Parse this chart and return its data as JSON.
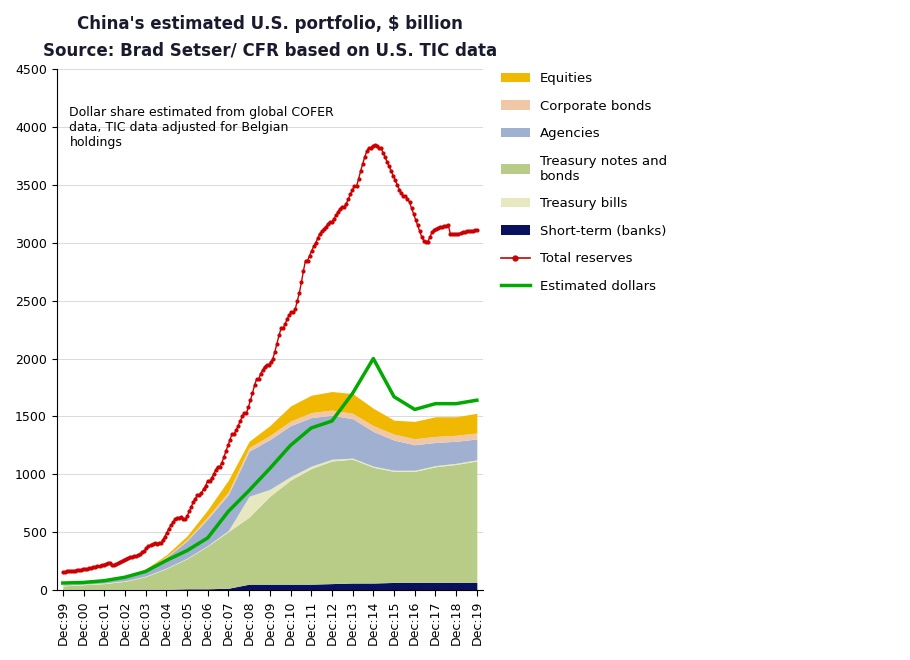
{
  "title": "China's estimated U.S. portfolio, $ billion",
  "subtitle": "Source: Brad Setser/ CFR based on U.S. TIC data",
  "annotation": "Dollar share estimated from global COFER\ndata, TIC data adjusted for Belgian\nholdings",
  "x_labels": [
    "Dec:99",
    "Dec:00",
    "Dec:01",
    "Dec:02",
    "Dec:03",
    "Dec:04",
    "Dec:05",
    "Dec:06",
    "Dec:07",
    "Dec:08",
    "Dec:09",
    "Dec:10",
    "Dec:11",
    "Dec:12",
    "Dec:13",
    "Dec:14",
    "Dec:15",
    "Dec:16",
    "Dec:17",
    "Dec:18",
    "Dec:19"
  ],
  "years": [
    1999,
    2000,
    2001,
    2002,
    2003,
    2004,
    2005,
    2006,
    2007,
    2008,
    2009,
    2010,
    2011,
    2012,
    2013,
    2014,
    2015,
    2016,
    2017,
    2018,
    2019
  ],
  "short_term_banks": [
    5,
    5,
    5,
    5,
    5,
    5,
    10,
    10,
    15,
    50,
    50,
    50,
    50,
    55,
    60,
    60,
    65,
    65,
    65,
    65,
    65
  ],
  "treasury_notes_bonds": [
    30,
    40,
    50,
    70,
    110,
    180,
    260,
    370,
    490,
    580,
    760,
    900,
    1000,
    1060,
    1070,
    1000,
    960,
    960,
    1000,
    1020,
    1050
  ],
  "treasury_bills": [
    5,
    5,
    5,
    5,
    5,
    5,
    5,
    5,
    10,
    180,
    60,
    30,
    20,
    15,
    10,
    10,
    10,
    10,
    10,
    10,
    10
  ],
  "agencies": [
    5,
    10,
    15,
    25,
    50,
    90,
    150,
    230,
    310,
    390,
    430,
    440,
    420,
    380,
    340,
    300,
    260,
    220,
    200,
    190,
    180
  ],
  "corporate_bonds": [
    3,
    3,
    3,
    3,
    5,
    8,
    12,
    18,
    25,
    30,
    35,
    40,
    43,
    45,
    47,
    50,
    52,
    52,
    52,
    52,
    52
  ],
  "equities": [
    3,
    3,
    3,
    3,
    7,
    15,
    30,
    60,
    100,
    55,
    85,
    130,
    150,
    160,
    170,
    150,
    120,
    150,
    170,
    160,
    170
  ],
  "total_reserves": [
    155,
    168,
    212,
    291,
    403,
    609,
    819,
    1066,
    1528,
    1946,
    2399,
    2847,
    3181,
    3312,
    3821,
    3843,
    3406,
    3011,
    3140,
    3073,
    3108
  ],
  "estimated_dollars": [
    60,
    65,
    80,
    110,
    160,
    255,
    340,
    450,
    680,
    860,
    1050,
    1250,
    1400,
    1460,
    1700,
    2000,
    1670,
    1560,
    1610,
    1610,
    1640
  ],
  "colors": {
    "short_term_banks": "#0a1060",
    "treasury_notes_bonds": "#b8cc88",
    "treasury_bills": "#e8e8c0",
    "agencies": "#a0b0d0",
    "corporate_bonds": "#f0c8a8",
    "equities": "#f0b800",
    "total_reserves": "#cc0000",
    "estimated_dollars": "#00aa00"
  },
  "ylim": [
    0,
    4500
  ],
  "yticks": [
    0,
    500,
    1000,
    1500,
    2000,
    2500,
    3000,
    3500,
    4000,
    4500
  ],
  "total_reserves_monthly": [
    155,
    157,
    160,
    163,
    165,
    166,
    168,
    170,
    172,
    175,
    178,
    180,
    183,
    186,
    190,
    195,
    200,
    205,
    210,
    215,
    220,
    225,
    230,
    235,
    212,
    218,
    224,
    232,
    240,
    250,
    260,
    270,
    278,
    284,
    288,
    291,
    291,
    300,
    310,
    325,
    340,
    360,
    378,
    390,
    398,
    402,
    400,
    403,
    403,
    430,
    460,
    495,
    530,
    560,
    585,
    609,
    619,
    625,
    630,
    609,
    609,
    640,
    680,
    720,
    760,
    790,
    819,
    819,
    840,
    870,
    900,
    940,
    940,
    970,
    1000,
    1040,
    1066,
    1066,
    1100,
    1150,
    1200,
    1250,
    1300,
    1350,
    1350,
    1380,
    1420,
    1460,
    1500,
    1528,
    1528,
    1580,
    1640,
    1700,
    1770,
    1820,
    1820,
    1870,
    1900,
    1930,
    1946,
    1946,
    1970,
    2000,
    2060,
    2130,
    2200,
    2260,
    2260,
    2300,
    2340,
    2380,
    2399,
    2399,
    2430,
    2500,
    2570,
    2660,
    2760,
    2847,
    2847,
    2890,
    2930,
    2970,
    3000,
    3040,
    3080,
    3100,
    3120,
    3140,
    3160,
    3181,
    3181,
    3210,
    3240,
    3270,
    3295,
    3312,
    3312,
    3340,
    3380,
    3420,
    3460,
    3490,
    3490,
    3550,
    3620,
    3680,
    3740,
    3790,
    3821,
    3821,
    3840,
    3843,
    3840,
    3820,
    3820,
    3780,
    3740,
    3700,
    3660,
    3620,
    3580,
    3540,
    3500,
    3460,
    3430,
    3406,
    3406,
    3380,
    3350,
    3300,
    3250,
    3200,
    3150,
    3100,
    3050,
    3020,
    3011,
    3011,
    3050,
    3090,
    3110,
    3120,
    3130,
    3140,
    3140,
    3145,
    3148,
    3150,
    3080,
    3073,
    3073,
    3075,
    3080,
    3085,
    3090,
    3095,
    3100,
    3102,
    3104,
    3106,
    3107,
    3108
  ]
}
